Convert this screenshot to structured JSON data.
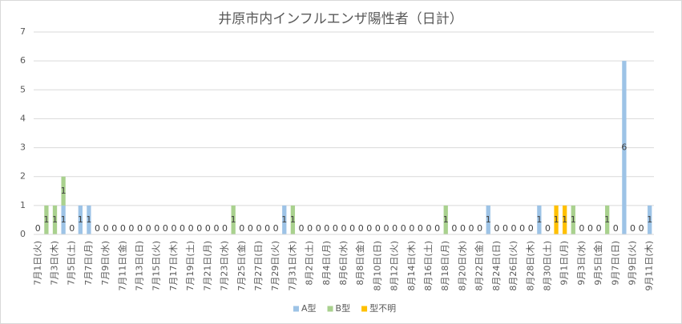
{
  "chart_data": {
    "type": "stacked-bar",
    "title": "井原市内インフルエンザ陽性者（日計）",
    "categories": [
      "7月1日(火)",
      null,
      "7月3日(木)",
      null,
      "7月5日(土)",
      null,
      "7月7日(月)",
      null,
      "7月9日(水)",
      null,
      "7月11日(金)",
      null,
      "7月13日(日)",
      null,
      "7月15日(火)",
      null,
      "7月17日(木)",
      null,
      "7月19日(土)",
      null,
      "7月21日(月)",
      null,
      "7月23日(水)",
      null,
      "7月25日(金)",
      null,
      "7月27日(日)",
      null,
      "7月29日(火)",
      null,
      "7月31日(木)",
      null,
      "8月2日(土)",
      null,
      "8月4日(月)",
      null,
      "8月6日(水)",
      null,
      "8月8日(金)",
      null,
      "8月10日(日)",
      null,
      "8月12日(火)",
      null,
      "8月14日(木)",
      null,
      "8月16日(土)",
      null,
      "8月18日(月)",
      null,
      "8月20日(水)",
      null,
      "8月22日(金)",
      null,
      "8月24日(日)",
      null,
      "8月26日(火)",
      null,
      "8月28日(木)",
      null,
      "8月30日(土)",
      null,
      "9月1日(月)",
      null,
      "9月3日(水)",
      null,
      "9月5日(金)",
      null,
      "9月7日(日)",
      null,
      "9月9日(火)",
      null,
      "9月11日(木)"
    ],
    "series": [
      {
        "name": "A型",
        "color": "#9dc3e6",
        "values": [
          0,
          0,
          0,
          1,
          0,
          1,
          1,
          0,
          0,
          0,
          0,
          0,
          0,
          0,
          0,
          0,
          0,
          0,
          0,
          0,
          0,
          0,
          0,
          0,
          0,
          0,
          0,
          0,
          0,
          1,
          0,
          0,
          0,
          0,
          0,
          0,
          0,
          0,
          0,
          0,
          0,
          0,
          0,
          0,
          0,
          0,
          0,
          0,
          0,
          0,
          0,
          0,
          0,
          1,
          0,
          0,
          0,
          0,
          0,
          1,
          0,
          0,
          0,
          0,
          0,
          0,
          0,
          0,
          0,
          6,
          0,
          0,
          1
        ]
      },
      {
        "name": "B型",
        "color": "#a9d18e",
        "values": [
          0,
          1,
          1,
          1,
          0,
          0,
          0,
          0,
          0,
          0,
          0,
          0,
          0,
          0,
          0,
          0,
          0,
          0,
          0,
          0,
          0,
          0,
          0,
          1,
          0,
          0,
          0,
          0,
          0,
          0,
          1,
          0,
          0,
          0,
          0,
          0,
          0,
          0,
          0,
          0,
          0,
          0,
          0,
          0,
          0,
          0,
          0,
          0,
          1,
          0,
          0,
          0,
          0,
          0,
          0,
          0,
          0,
          0,
          0,
          0,
          0,
          0,
          0,
          1,
          0,
          0,
          0,
          1,
          0,
          0,
          0,
          0,
          0
        ]
      },
      {
        "name": "型不明",
        "color": "#ffc000",
        "values": [
          0,
          0,
          0,
          0,
          0,
          0,
          0,
          0,
          0,
          0,
          0,
          0,
          0,
          0,
          0,
          0,
          0,
          0,
          0,
          0,
          0,
          0,
          0,
          0,
          0,
          0,
          0,
          0,
          0,
          0,
          0,
          0,
          0,
          0,
          0,
          0,
          0,
          0,
          0,
          0,
          0,
          0,
          0,
          0,
          0,
          0,
          0,
          0,
          0,
          0,
          0,
          0,
          0,
          0,
          0,
          0,
          0,
          0,
          0,
          0,
          0,
          1,
          1,
          0,
          0,
          0,
          0,
          0,
          0,
          0,
          0,
          0,
          0
        ]
      }
    ],
    "ylim": [
      0,
      7
    ],
    "yticks": [
      0,
      1,
      2,
      3,
      4,
      5,
      6,
      7
    ],
    "grid": true,
    "legend": "bottom"
  }
}
